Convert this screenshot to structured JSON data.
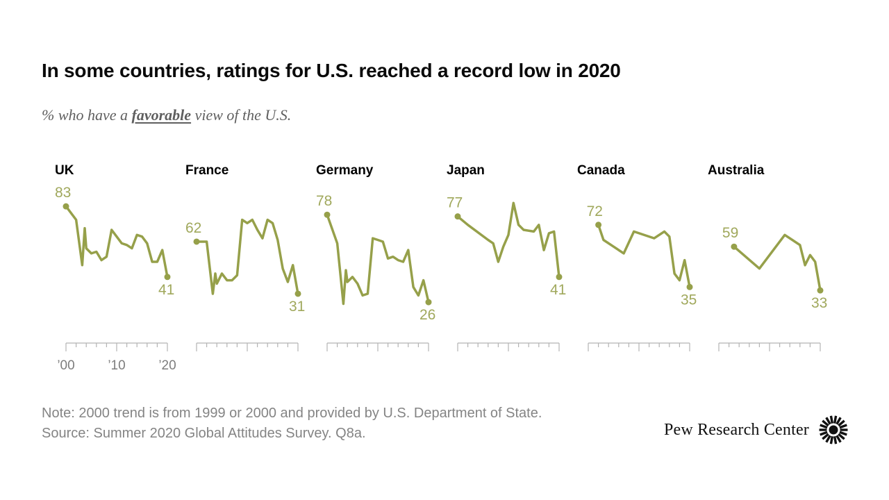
{
  "title": "In some countries, ratings for U.S. reached a record low in 2020",
  "subtitle": {
    "prefix": "% who have a ",
    "emphasis": "favorable",
    "suffix": " view of the U.S."
  },
  "note": {
    "line1": "Note: 2000 trend is from 1999 or 2000 and provided by U.S. Department of State.",
    "line2": "Source: Summer 2020 Global Attitudes Survey. Q8a."
  },
  "branding": {
    "name": "Pew Research Center",
    "mark_icon": "starburst-icon"
  },
  "colors": {
    "line": "#96a04a",
    "value_label": "#a0a85c",
    "country_label": "#000000",
    "axis": "#b3b3b3",
    "axis_label": "#7d7d7d",
    "note_text": "#848484",
    "title_text": "#0a0a0a",
    "subtitle_text": "#5f5f5f"
  },
  "axis": {
    "labels": [
      "’00",
      "’10",
      "’20"
    ],
    "label_years": [
      2000,
      2010,
      2020
    ],
    "tick_interval_years": 2,
    "range": [
      2000,
      2020
    ],
    "shown_under_panel": "UK"
  },
  "chart_data": {
    "type": "line",
    "unit": "% favorable view of the U.S.",
    "x_range": [
      2000,
      2020
    ],
    "panels": [
      {
        "country": "UK",
        "first_value": "83",
        "last_value": "41",
        "points": [
          [
            2000,
            83
          ],
          [
            2002,
            75
          ],
          [
            2003.2,
            48
          ],
          [
            2003.7,
            70
          ],
          [
            2004,
            58
          ],
          [
            2005,
            55
          ],
          [
            2006,
            56
          ],
          [
            2007,
            51
          ],
          [
            2008,
            53
          ],
          [
            2009,
            69
          ],
          [
            2010,
            65
          ],
          [
            2011,
            61
          ],
          [
            2012,
            60
          ],
          [
            2013,
            58
          ],
          [
            2014,
            66
          ],
          [
            2015,
            65
          ],
          [
            2016,
            61
          ],
          [
            2017,
            50
          ],
          [
            2018,
            50
          ],
          [
            2019,
            57
          ],
          [
            2020,
            41
          ]
        ]
      },
      {
        "country": "France",
        "first_value": "62",
        "last_value": "31",
        "points": [
          [
            2000,
            62
          ],
          [
            2002,
            62
          ],
          [
            2003.2,
            31
          ],
          [
            2003.7,
            43
          ],
          [
            2004,
            37
          ],
          [
            2005,
            43
          ],
          [
            2006,
            39
          ],
          [
            2007,
            39
          ],
          [
            2008,
            42
          ],
          [
            2009,
            75
          ],
          [
            2010,
            73
          ],
          [
            2011,
            75
          ],
          [
            2012,
            69
          ],
          [
            2013,
            64
          ],
          [
            2014,
            75
          ],
          [
            2015,
            73
          ],
          [
            2016,
            63
          ],
          [
            2017,
            46
          ],
          [
            2018,
            38
          ],
          [
            2019,
            48
          ],
          [
            2020,
            31
          ]
        ]
      },
      {
        "country": "Germany",
        "first_value": "78",
        "last_value": "26",
        "points": [
          [
            2000,
            78
          ],
          [
            2002,
            61
          ],
          [
            2003.2,
            25
          ],
          [
            2003.7,
            45
          ],
          [
            2004,
            38
          ],
          [
            2005,
            41
          ],
          [
            2006,
            37
          ],
          [
            2007,
            30
          ],
          [
            2008,
            31
          ],
          [
            2009,
            64
          ],
          [
            2010,
            63
          ],
          [
            2011,
            62
          ],
          [
            2012,
            52
          ],
          [
            2013,
            53
          ],
          [
            2014,
            51
          ],
          [
            2015,
            50
          ],
          [
            2016,
            57
          ],
          [
            2017,
            35
          ],
          [
            2018,
            30
          ],
          [
            2019,
            39
          ],
          [
            2020,
            26
          ]
        ]
      },
      {
        "country": "Japan",
        "first_value": "77",
        "last_value": "41",
        "points": [
          [
            2000,
            77
          ],
          [
            2002,
            72
          ],
          [
            2006,
            63
          ],
          [
            2007,
            61
          ],
          [
            2008,
            50
          ],
          [
            2009,
            59
          ],
          [
            2010,
            66
          ],
          [
            2011,
            85
          ],
          [
            2012,
            72
          ],
          [
            2013,
            69
          ],
          [
            2015,
            68
          ],
          [
            2016,
            72
          ],
          [
            2017,
            57
          ],
          [
            2018,
            67
          ],
          [
            2019,
            68
          ],
          [
            2020,
            41
          ]
        ]
      },
      {
        "country": "Canada",
        "first_value": "72",
        "last_value": "35",
        "points": [
          [
            2002,
            72
          ],
          [
            2003,
            63
          ],
          [
            2005,
            59
          ],
          [
            2007,
            55
          ],
          [
            2009,
            68
          ],
          [
            2013,
            64
          ],
          [
            2015,
            68
          ],
          [
            2016,
            65
          ],
          [
            2017,
            43
          ],
          [
            2018,
            39
          ],
          [
            2019,
            51
          ],
          [
            2020,
            35
          ]
        ]
      },
      {
        "country": "Australia",
        "first_value": "59",
        "last_value": "33",
        "points": [
          [
            2003,
            59
          ],
          [
            2008,
            46
          ],
          [
            2013,
            66
          ],
          [
            2016,
            60
          ],
          [
            2017,
            48
          ],
          [
            2018,
            54
          ],
          [
            2019,
            50
          ],
          [
            2020,
            33
          ]
        ]
      }
    ]
  }
}
